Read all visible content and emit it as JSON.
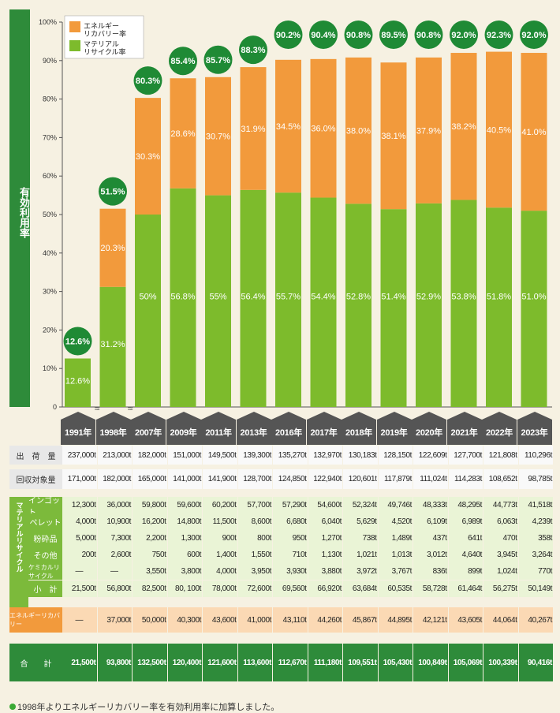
{
  "side_label": "有効利用率",
  "legend": {
    "energy": "エネルギーリカバリー率",
    "material": "マテリアルリサイクル率"
  },
  "colors": {
    "energy": "#f29a3c",
    "material": "#7dbb2c",
    "circle": "#1f8a35",
    "dark_green": "#2e8b3a",
    "gray": "#8e8e8e"
  },
  "note": "1998年よりエネルギーリカバリー率を有効利用率に加算しました。",
  "chart_data": {
    "type": "bar",
    "categories": [
      "1991年",
      "1998年",
      "2007年",
      "2009年",
      "2011年",
      "2013年",
      "2016年",
      "2017年",
      "2018年",
      "2019年",
      "2020年",
      "2021年",
      "2022年",
      "2023年"
    ],
    "series": [
      {
        "name": "マテリアルリサイクル率",
        "values": [
          12.6,
          31.2,
          50,
          56.8,
          55,
          56.4,
          55.7,
          54.4,
          52.8,
          51.4,
          52.9,
          53.8,
          51.8,
          51.0
        ]
      },
      {
        "name": "エネルギーリカバリー率",
        "values": [
          null,
          20.3,
          30.3,
          28.6,
          30.7,
          31.9,
          34.5,
          36.0,
          38.0,
          38.1,
          37.9,
          38.2,
          40.5,
          41.0
        ]
      }
    ],
    "totals": [
      12.6,
      51.5,
      80.3,
      85.4,
      85.7,
      88.3,
      90.2,
      90.4,
      90.8,
      89.5,
      90.8,
      92.0,
      92.3,
      92.0
    ],
    "material_labels": [
      "12.6%",
      "31.2%",
      "50%",
      "56.8%",
      "55%",
      "56.4%",
      "55.7%",
      "54.4%",
      "52.8%",
      "51.4%",
      "52.9%",
      "53.8%",
      "51.8%",
      "51.0%"
    ],
    "energy_labels": [
      "",
      "20.3%",
      "30.3%",
      "28.6%",
      "30.7%",
      "31.9%",
      "34.5%",
      "36.0%",
      "38.0%",
      "38.1%",
      "37.9%",
      "38.2%",
      "40.5%",
      "41.0%"
    ],
    "total_labels": [
      "12.6%",
      "51.5%",
      "80.3%",
      "85.4%",
      "85.7%",
      "88.3%",
      "90.2%",
      "90.4%",
      "90.8%",
      "89.5%",
      "90.8%",
      "92.0%",
      "92.3%",
      "92.0%"
    ],
    "ylim": [
      0,
      100
    ],
    "yticks": [
      "0",
      "10%",
      "20%",
      "30%",
      "40%",
      "50%",
      "60%",
      "70%",
      "80%",
      "90%",
      "100%"
    ],
    "legend_position": "top-left",
    "grid": false
  },
  "table": {
    "rows": [
      {
        "label": "出　荷　量",
        "group": "gray",
        "values": [
          "237,000t",
          "213,000t",
          "182,000t",
          "151,000t",
          "149,500t",
          "139,300t",
          "135,270t",
          "132,970t",
          "130,183t",
          "128,150t",
          "122,609t",
          "127,700t",
          "121,808t",
          "110,296t"
        ]
      },
      {
        "label": "回収対象量",
        "group": "gray",
        "values": [
          "171,000t",
          "182,000t",
          "165,000t",
          "141,000t",
          "141,900t",
          "128,700t",
          "124,850t",
          "122,940t",
          "120,601t",
          "117,879t",
          "111,024t",
          "114,283t",
          "108,652t",
          "98,785t"
        ]
      },
      {
        "label": "インゴット",
        "group": "material",
        "values": [
          "12,300t",
          "36,000t",
          "59,800t",
          "59,600t",
          "60,200t",
          "57,700t",
          "57,290t",
          "54,600t",
          "52,324t",
          "49,746t",
          "48,333t",
          "48,295t",
          "44,773t",
          "41,518t"
        ]
      },
      {
        "label": "ペレット",
        "group": "material",
        "values": [
          "4,000t",
          "10,900t",
          "16,200t",
          "14,800t",
          "11,500t",
          "8,600t",
          "6,680t",
          "6,040t",
          "5,629t",
          "4,520t",
          "6,109t",
          "6,989t",
          "6,063t",
          "4,239t"
        ]
      },
      {
        "label": "粉砕品",
        "group": "material",
        "values": [
          "5,000t",
          "7,300t",
          "2,200t",
          "1,300t",
          "900t",
          "800t",
          "950t",
          "1,270t",
          "738t",
          "1,489t",
          "437t",
          "641t",
          "470t",
          "358t"
        ]
      },
      {
        "label": "その他",
        "group": "material",
        "values": [
          "200t",
          "2,600t",
          "750t",
          "600t",
          "1,400t",
          "1,550t",
          "710t",
          "1,130t",
          "1,021t",
          "1,013t",
          "3,012t",
          "4,640t",
          "3,945t",
          "3,264t"
        ]
      },
      {
        "label": "ケミカルリサイクル",
        "group": "material",
        "values": [
          "—",
          "—",
          "3,550t",
          "3,800t",
          "4,000t",
          "3,950t",
          "3,930t",
          "3,880t",
          "3,972t",
          "3,767t",
          "836t",
          "899t",
          "1,024t",
          "770t"
        ]
      },
      {
        "label": "小　計",
        "group": "material",
        "values": [
          "21,500t",
          "56,800t",
          "82,500t",
          "80, 100t",
          "78,000t",
          "72,600t",
          "69,560t",
          "66,920t",
          "63,684t",
          "60,535t",
          "58,728t",
          "61,464t",
          "56,275t",
          "50,149t"
        ]
      },
      {
        "label": "エネルギーリカバリー",
        "group": "energy",
        "values": [
          "—",
          "37,000t",
          "50,000t",
          "40,300t",
          "43,600t",
          "41,000t",
          "43,110t",
          "44,260t",
          "45,867t",
          "44,895t",
          "42,121t",
          "43,605t",
          "44,064t",
          "40,267t"
        ]
      },
      {
        "label": "合　　計",
        "group": "total",
        "values": [
          "21,500t",
          "93,800t",
          "132,500t",
          "120,400t",
          "121,600t",
          "113,600t",
          "112,670t",
          "111,180t",
          "109,551t",
          "105,430t",
          "100,849t",
          "105,069t",
          "100,339t",
          "90,416t"
        ]
      }
    ],
    "material_group_label": "マテリアルリサイクル"
  }
}
